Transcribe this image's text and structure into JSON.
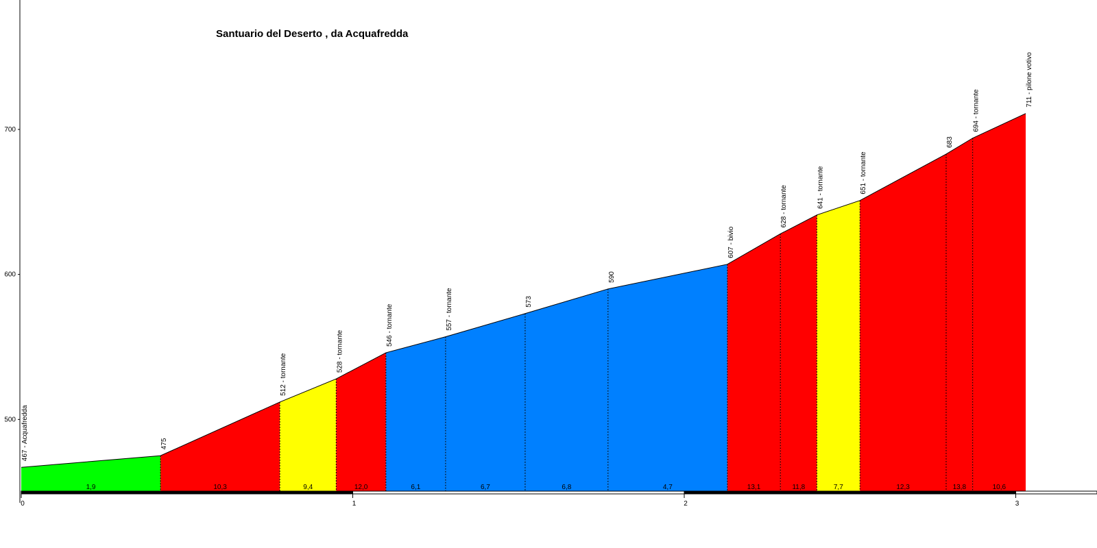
{
  "chart_data": {
    "type": "area",
    "title": "Santuario del Deserto , da Acquafredda",
    "xlabel": "",
    "ylabel": "",
    "xlim": [
      0,
      3.2
    ],
    "ylim": [
      443,
      783
    ],
    "x_ticks": [
      "0",
      "1",
      "2",
      "3"
    ],
    "y_ticks": [
      "500",
      "600",
      "700"
    ],
    "points": [
      {
        "x": 0.0,
        "y": 467,
        "label": "467 - Acquafredda"
      },
      {
        "x": 0.42,
        "y": 475,
        "label": "475"
      },
      {
        "x": 0.78,
        "y": 512,
        "label": "512 - tornante"
      },
      {
        "x": 0.95,
        "y": 528,
        "label": "528 - tornante"
      },
      {
        "x": 1.1,
        "y": 546,
        "label": "546 - tornante"
      },
      {
        "x": 1.28,
        "y": 557,
        "label": "557 - tornante"
      },
      {
        "x": 1.52,
        "y": 573,
        "label": "573"
      },
      {
        "x": 1.77,
        "y": 590,
        "label": "590"
      },
      {
        "x": 2.13,
        "y": 607,
        "label": "607 - bivio"
      },
      {
        "x": 2.29,
        "y": 628,
        "label": "628 - tornante"
      },
      {
        "x": 2.4,
        "y": 641,
        "label": "641 - tornante"
      },
      {
        "x": 2.53,
        "y": 651,
        "label": "651 - tornante"
      },
      {
        "x": 2.79,
        "y": 683,
        "label": "683"
      },
      {
        "x": 2.87,
        "y": 694,
        "label": "694 - tornante"
      },
      {
        "x": 3.03,
        "y": 711,
        "label": "711 - pilone votivo"
      }
    ],
    "segments": [
      {
        "gradient": "1,9",
        "color": "#00ff00"
      },
      {
        "gradient": "10,3",
        "color": "#ff0000"
      },
      {
        "gradient": "9,4",
        "color": "#ffff00"
      },
      {
        "gradient": "12,0",
        "color": "#ff0000"
      },
      {
        "gradient": "6,1",
        "color": "#0080ff"
      },
      {
        "gradient": "6,7",
        "color": "#0080ff"
      },
      {
        "gradient": "6,8",
        "color": "#0080ff"
      },
      {
        "gradient": "4,7",
        "color": "#0080ff"
      },
      {
        "gradient": "13,1",
        "color": "#ff0000"
      },
      {
        "gradient": "11,8",
        "color": "#ff0000"
      },
      {
        "gradient": "7,7",
        "color": "#ffff00"
      },
      {
        "gradient": "12,3",
        "color": "#ff0000"
      },
      {
        "gradient": "13,8",
        "color": "#ff0000"
      },
      {
        "gradient": "10,6",
        "color": "#ff0000"
      }
    ]
  }
}
